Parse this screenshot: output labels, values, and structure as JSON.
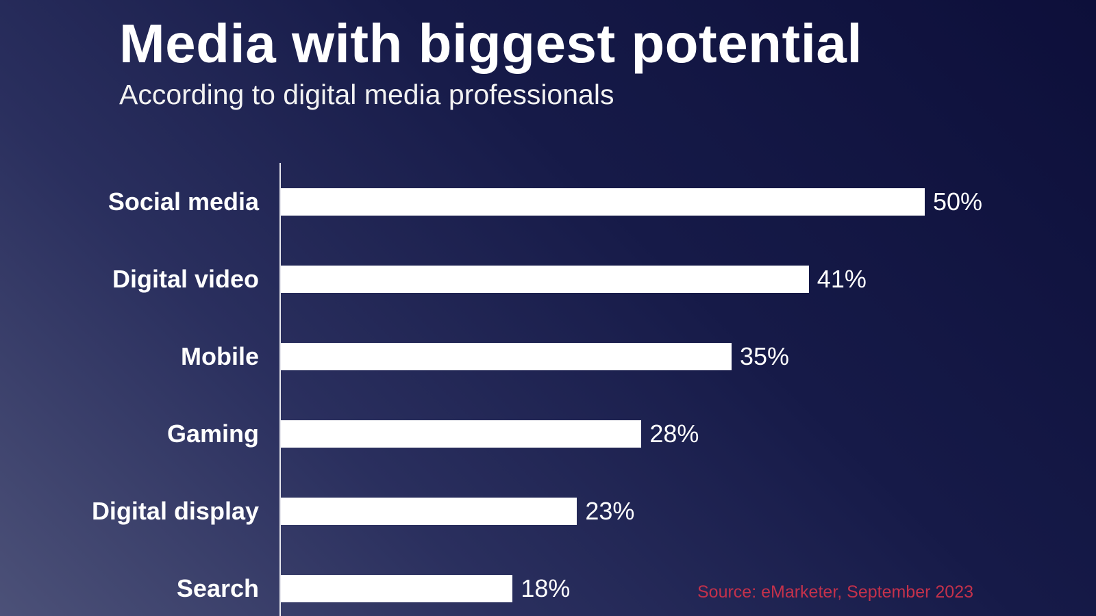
{
  "chart_data": {
    "type": "bar",
    "orientation": "horizontal",
    "title": "Media with biggest potential",
    "subtitle": "According to digital media professionals",
    "categories": [
      "Social media",
      "Digital video",
      "Mobile",
      "Gaming",
      "Digital display",
      "Search"
    ],
    "values": [
      50,
      41,
      35,
      28,
      23,
      18
    ],
    "value_labels": [
      "50%",
      "41%",
      "35%",
      "28%",
      "23%",
      "18%"
    ],
    "unit": "%",
    "xlim": [
      0,
      50
    ],
    "grid": false,
    "legend": "none",
    "source": "Source: eMarketer, September 2023",
    "colors": {
      "bar": "#ffffff",
      "background": "#161a48",
      "source_text": "#c4314b"
    }
  }
}
